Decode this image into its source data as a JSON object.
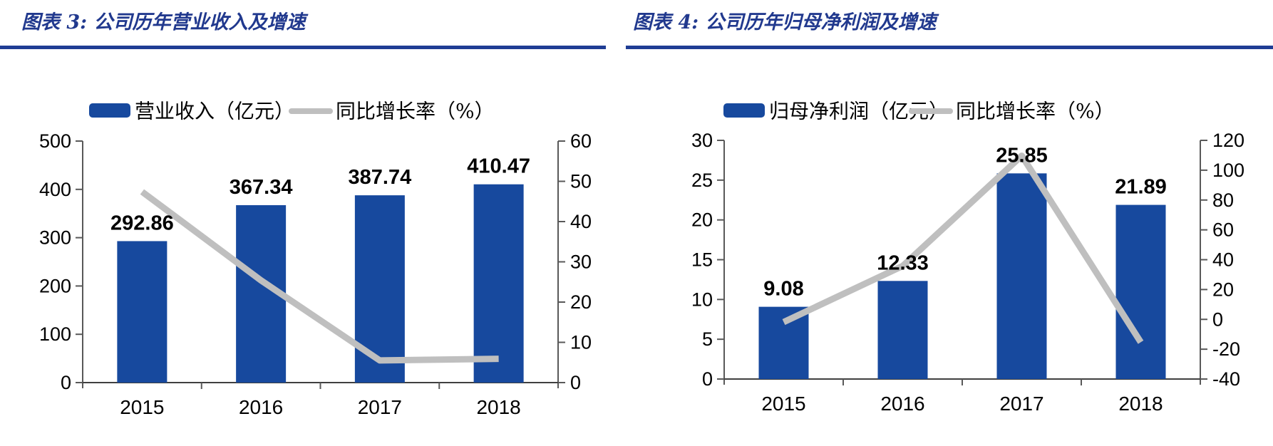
{
  "colors": {
    "bar_blue": "#17499E",
    "line_gray": "#BFBFBF",
    "title_blue": "#21398E",
    "rule_blue": "#1F3D94",
    "axis_gray": "#595959",
    "bottom_axis": "#404040",
    "label_black": "#000000"
  },
  "chart_data": [
    {
      "type": "bar+line",
      "title": "图表 3:  公司历年营业收入及增速",
      "categories": [
        "2015",
        "2016",
        "2017",
        "2018"
      ],
      "series": [
        {
          "name": "营业收入（亿元）",
          "type": "bar",
          "axis": "left",
          "values": [
            292.86,
            367.34,
            387.74,
            410.47
          ],
          "data_labels": [
            "292.86",
            "367.34",
            "387.74",
            "410.47"
          ]
        },
        {
          "name": "同比增长率（%）",
          "type": "line",
          "axis": "right",
          "values": [
            47.4,
            25.4,
            5.5,
            5.9
          ]
        }
      ],
      "left_axis": {
        "min": 0,
        "max": 500,
        "step": 100,
        "ticks": [
          "0",
          "100",
          "200",
          "300",
          "400",
          "500"
        ]
      },
      "right_axis": {
        "min": 0,
        "max": 60,
        "step": 10,
        "ticks": [
          "0",
          "10",
          "20",
          "30",
          "40",
          "50",
          "60"
        ]
      },
      "legend_position": "top",
      "grid": false
    },
    {
      "type": "bar+line",
      "title": "图表 4:  公司历年归母净利润及增速",
      "categories": [
        "2015",
        "2016",
        "2017",
        "2018"
      ],
      "series": [
        {
          "name": "归母净利润（亿元）",
          "type": "bar",
          "axis": "left",
          "values": [
            9.08,
            12.33,
            25.85,
            21.89
          ],
          "data_labels": [
            "9.08",
            "12.33",
            "25.85",
            "21.89"
          ]
        },
        {
          "name": "同比增长率（%）",
          "type": "line",
          "axis": "right",
          "values": [
            -1.8,
            35.8,
            109.7,
            -15.3
          ]
        }
      ],
      "left_axis": {
        "min": 0,
        "max": 30,
        "step": 5,
        "ticks": [
          "0",
          "5",
          "10",
          "15",
          "20",
          "25",
          "30"
        ]
      },
      "right_axis": {
        "min": -40,
        "max": 120,
        "step": 20,
        "ticks": [
          "-40",
          "-20",
          "0",
          "20",
          "40",
          "60",
          "80",
          "100",
          "120"
        ]
      },
      "legend_position": "top",
      "grid": false
    }
  ]
}
